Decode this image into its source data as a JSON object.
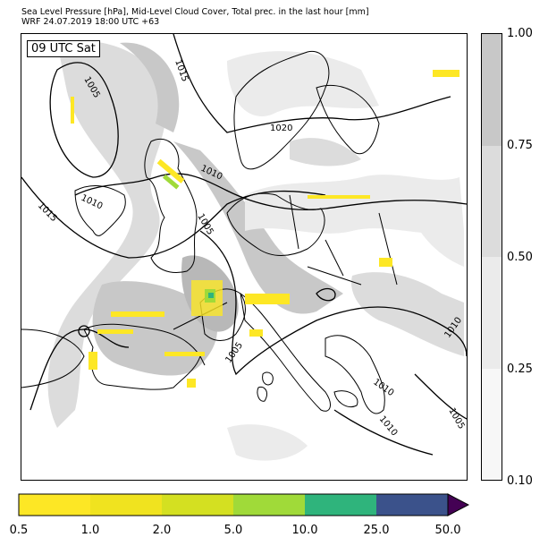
{
  "header": {
    "title_line1": "Sea Level Pressure [hPa], Mid-Level Cloud Cover, Total prec. in the last hour [mm]",
    "title_line2": "WRF 24.07.2019 18:00 UTC +63"
  },
  "map": {
    "time_label": "09 UTC Sat",
    "isobar_labels": [
      "1005",
      "1015",
      "1020",
      "1010",
      "1010",
      "1015",
      "1005",
      "1005",
      "1010",
      "1010",
      "1010",
      "1005"
    ]
  },
  "cloud_colorbar": {
    "ticks": [
      "1.00",
      "0.75",
      "0.50",
      "0.25",
      "0.10"
    ],
    "colors": [
      "#c8c8c8",
      "#dcdcdc",
      "#ebebeb",
      "#f7f7f7"
    ]
  },
  "precip_colorbar": {
    "ticks": [
      "0.5",
      "1.0",
      "2.0",
      "5.0",
      "10.0",
      "25.0",
      "50.0"
    ],
    "colors": [
      "#fde725",
      "#f0e31f",
      "#d4e021",
      "#a0da39",
      "#2fb47c",
      "#3b528b",
      "#440154"
    ],
    "extend": "max"
  }
}
